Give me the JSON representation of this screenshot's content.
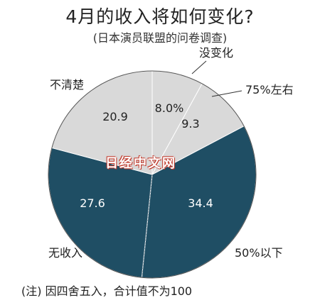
{
  "chart_data": {
    "type": "pie",
    "title": "4月的收入将如何变化?",
    "subtitle": "(日本演员联盟的问卷调查)",
    "slices": [
      {
        "label": "没变化",
        "value": 8.0,
        "value_text": "8.0%",
        "color": "#d9d9d9"
      },
      {
        "label": "75%左右",
        "value": 9.3,
        "value_text": "9.3",
        "color": "#d9d9d9"
      },
      {
        "label": "50%以下",
        "value": 34.4,
        "value_text": "34.4",
        "color": "#1f4e64"
      },
      {
        "label": "无收入",
        "value": 27.6,
        "value_text": "27.6",
        "color": "#1f4e64"
      },
      {
        "label": "不清楚",
        "value": 20.9,
        "value_text": "20.9",
        "color": "#d9d9d9"
      }
    ],
    "start_angle_deg": 0,
    "direction": "clockwise"
  },
  "note": "(注) 因四舍五入，合计值不为100",
  "watermark": "日经中文网"
}
